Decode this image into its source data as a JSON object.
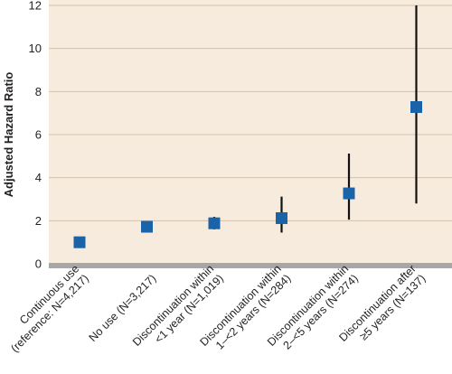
{
  "chart_data": {
    "type": "scatter",
    "ylabel": "Adjusted Hazard Ratio",
    "xlabel": "",
    "ylim": [
      0,
      12
    ],
    "yticks": [
      0,
      2,
      4,
      6,
      8,
      10,
      12
    ],
    "grid": "horizontal",
    "categories": [
      [
        "Continuous use",
        "(reference: N=4,217)"
      ],
      [
        "No use (N=3,217)"
      ],
      [
        "Discontinuation within",
        "<1 year (N=1,019)"
      ],
      [
        "Discontinuation within",
        "1–<2 years (N=284)"
      ],
      [
        "Discontinuation within",
        "2–<5 years (N=274)"
      ],
      [
        "Discontinuation after",
        "≥5 years (N=137)"
      ]
    ],
    "series": [
      {
        "values": [
          1.0,
          1.72,
          1.88,
          2.12,
          3.27,
          7.28
        ],
        "ci_lower": [
          null,
          1.45,
          1.6,
          1.45,
          2.05,
          2.8
        ],
        "ci_upper": [
          null,
          1.98,
          2.18,
          3.12,
          5.12,
          12.0
        ]
      }
    ],
    "colors": {
      "background": "#f7ebdd",
      "grid": "#d3c1ad",
      "marker": "#1a63a8",
      "error_bar": "#111111",
      "baseline": "#a7a7a7"
    }
  }
}
